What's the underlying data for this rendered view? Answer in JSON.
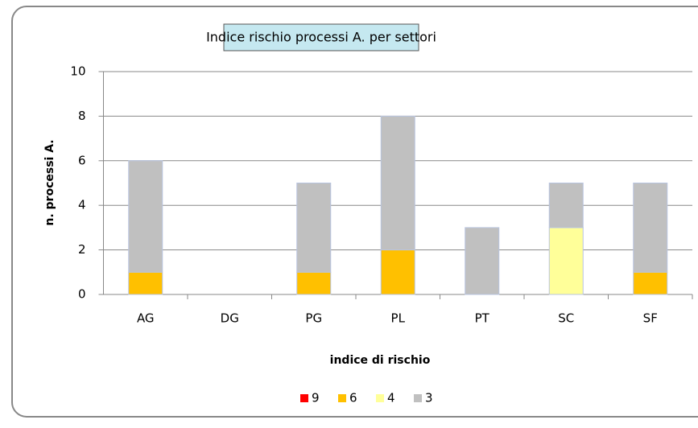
{
  "chart_data": {
    "type": "bar",
    "stacked": true,
    "title": "Indice rischio processi A. per settori",
    "x_label": "indice di rischio",
    "y_label": "n. processi  A.",
    "categories": [
      "AG",
      "DG",
      "PG",
      "PL",
      "PT",
      "SC",
      "SF"
    ],
    "series": [
      {
        "name": "9",
        "color": "#ff0000",
        "values": [
          0,
          0,
          0,
          0,
          0,
          0,
          0
        ]
      },
      {
        "name": "6",
        "color": "#ffc000",
        "values": [
          1,
          0,
          1,
          2,
          0,
          0,
          1
        ]
      },
      {
        "name": "4",
        "color": "#ffff99",
        "values": [
          0,
          0,
          0,
          0,
          0,
          3,
          0
        ]
      },
      {
        "name": "3",
        "color": "#c0c0c0",
        "values": [
          5,
          0,
          4,
          6,
          3,
          2,
          4
        ]
      }
    ],
    "ylim": [
      0,
      10
    ],
    "yticks": [
      0,
      2,
      4,
      6,
      8,
      10
    ],
    "grid": true,
    "legend": "bottom"
  }
}
